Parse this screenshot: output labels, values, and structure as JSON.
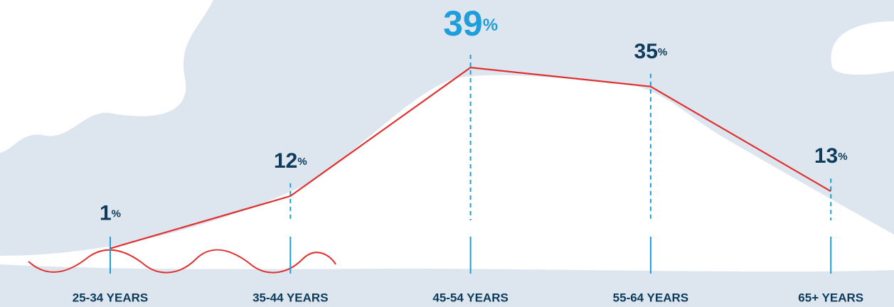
{
  "chart_data": {
    "type": "line",
    "categories": [
      "25-34 YEARS",
      "35-44 YEARS",
      "45-54 YEARS",
      "55-64 YEARS",
      "65+ YEARS"
    ],
    "values": [
      1,
      12,
      39,
      35,
      13
    ],
    "value_labels": [
      "1%",
      "12%",
      "39%",
      "35%",
      "13%"
    ],
    "label_colors": [
      "#0d3b5c",
      "#0d3b5c",
      "#1e9fdc",
      "#0d3b5c",
      "#0d3b5c"
    ],
    "line_color": "#e03131",
    "tick_color": "#1e9fdc"
  }
}
